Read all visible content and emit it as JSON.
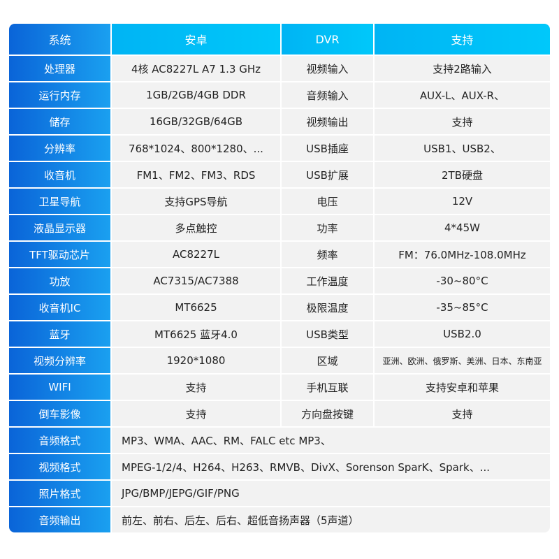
{
  "header": [
    "系统",
    "安卓",
    "DVR",
    "支持"
  ],
  "rows": [
    [
      "处理器",
      "4核  AC8227L A7 1.3 GHz",
      "视频输入",
      "支持2路输入"
    ],
    [
      "运行内存",
      "1GB/2GB/4GB  DDR",
      "音频输入",
      "AUX-L、AUX-R、"
    ],
    [
      "储存",
      "16GB/32GB/64GB",
      "视频输出",
      "支持"
    ],
    [
      "分辨率",
      "768*1024、800*1280、...",
      "USB插座",
      "USB1、USB2、"
    ],
    [
      "收音机",
      "FM1、FM2、FM3、RDS",
      "USB扩展",
      "2TB硬盘"
    ],
    [
      "卫星导航",
      "支持GPS导航",
      "电压",
      "12V"
    ],
    [
      "液晶显示器",
      "多点触控",
      "功率",
      "4*45W"
    ],
    [
      "TFT驱动芯片",
      "AC8227L",
      "频率",
      "FM：76.0MHz-108.0MHz"
    ],
    [
      "功放",
      "AC7315/AC7388",
      "工作温度",
      "-30~80°C"
    ],
    [
      "收音机IC",
      "MT6625",
      "极限温度",
      "-35~85°C"
    ],
    [
      "蓝牙",
      "MT6625 蓝牙4.0",
      "USB类型",
      "USB2.0"
    ],
    [
      "视频分辨率",
      "1920*1080",
      "区域",
      "亚洲、欧洲、俄罗斯、美洲、日本、东南亚"
    ],
    [
      "WIFI",
      "支持",
      "手机互联",
      "支持安卓和苹果"
    ],
    [
      "倒车影像",
      "支持",
      "方向盘按键",
      "支持"
    ]
  ],
  "wide_rows": [
    [
      "音频格式",
      "MP3、WMA、AAC、RM、FALC etc MP3、"
    ],
    [
      "视频格式",
      "MPEG-1/2/4、H264、H263、RMVB、DivX、Sorenson SparK、Spark、..."
    ],
    [
      "照片格式",
      "JPG/BMP/JEPG/GIF/PNG"
    ],
    [
      "音频输出",
      "前左、前右、后左、后右、超低音扬声器（5声道）"
    ]
  ],
  "colors": {
    "key_column": "#0a64d8",
    "header": "#00c0f8",
    "cell": "#f2f2f2"
  }
}
